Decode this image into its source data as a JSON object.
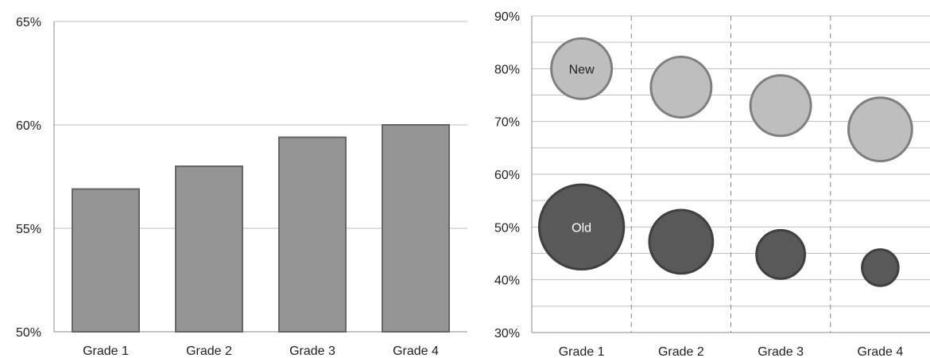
{
  "chart_data": [
    {
      "type": "bar",
      "categories": [
        "Grade 1",
        "Grade 2",
        "Grade 3",
        "Grade 4"
      ],
      "values": [
        56.9,
        58.0,
        59.4,
        60.0
      ],
      "ylim": [
        50,
        65
      ],
      "yticks": [
        "50%",
        "55%",
        "60%",
        "65%"
      ],
      "ytick_values": [
        50,
        55,
        60,
        65
      ],
      "grid": true,
      "colors": {
        "bar_fill": "#949494",
        "bar_stroke": "#666666",
        "grid": "#bfbfbf",
        "axis": "#888888"
      }
    },
    {
      "type": "scatter",
      "categories": [
        "Grade 1",
        "Grade 2",
        "Grade 3",
        "Grade 4"
      ],
      "ylim": [
        30,
        90
      ],
      "yticks": [
        "30%",
        "40%",
        "50%",
        "60%",
        "70%",
        "80%",
        "90%"
      ],
      "ytick_values": [
        30,
        40,
        50,
        60,
        70,
        80,
        90
      ],
      "grid": true,
      "series": [
        {
          "name": "New",
          "values": [
            80,
            76.5,
            73,
            68.5
          ],
          "relative_size": [
            1.0,
            1.0,
            1.0,
            1.05
          ],
          "fill": "#bebebe",
          "stroke": "#7f7f7f",
          "label_color": "#222222",
          "label_index": 0
        },
        {
          "name": "Old",
          "values": [
            50,
            47.2,
            44.8,
            42.3
          ],
          "relative_size": [
            1.4,
            1.05,
            0.8,
            0.6
          ],
          "fill": "#595959",
          "stroke": "#404040",
          "label_color": "#ffffff",
          "label_index": 0
        }
      ],
      "colors": {
        "grid": "#bfbfbf",
        "axis": "#888888",
        "category_divider": "#888888"
      }
    }
  ]
}
